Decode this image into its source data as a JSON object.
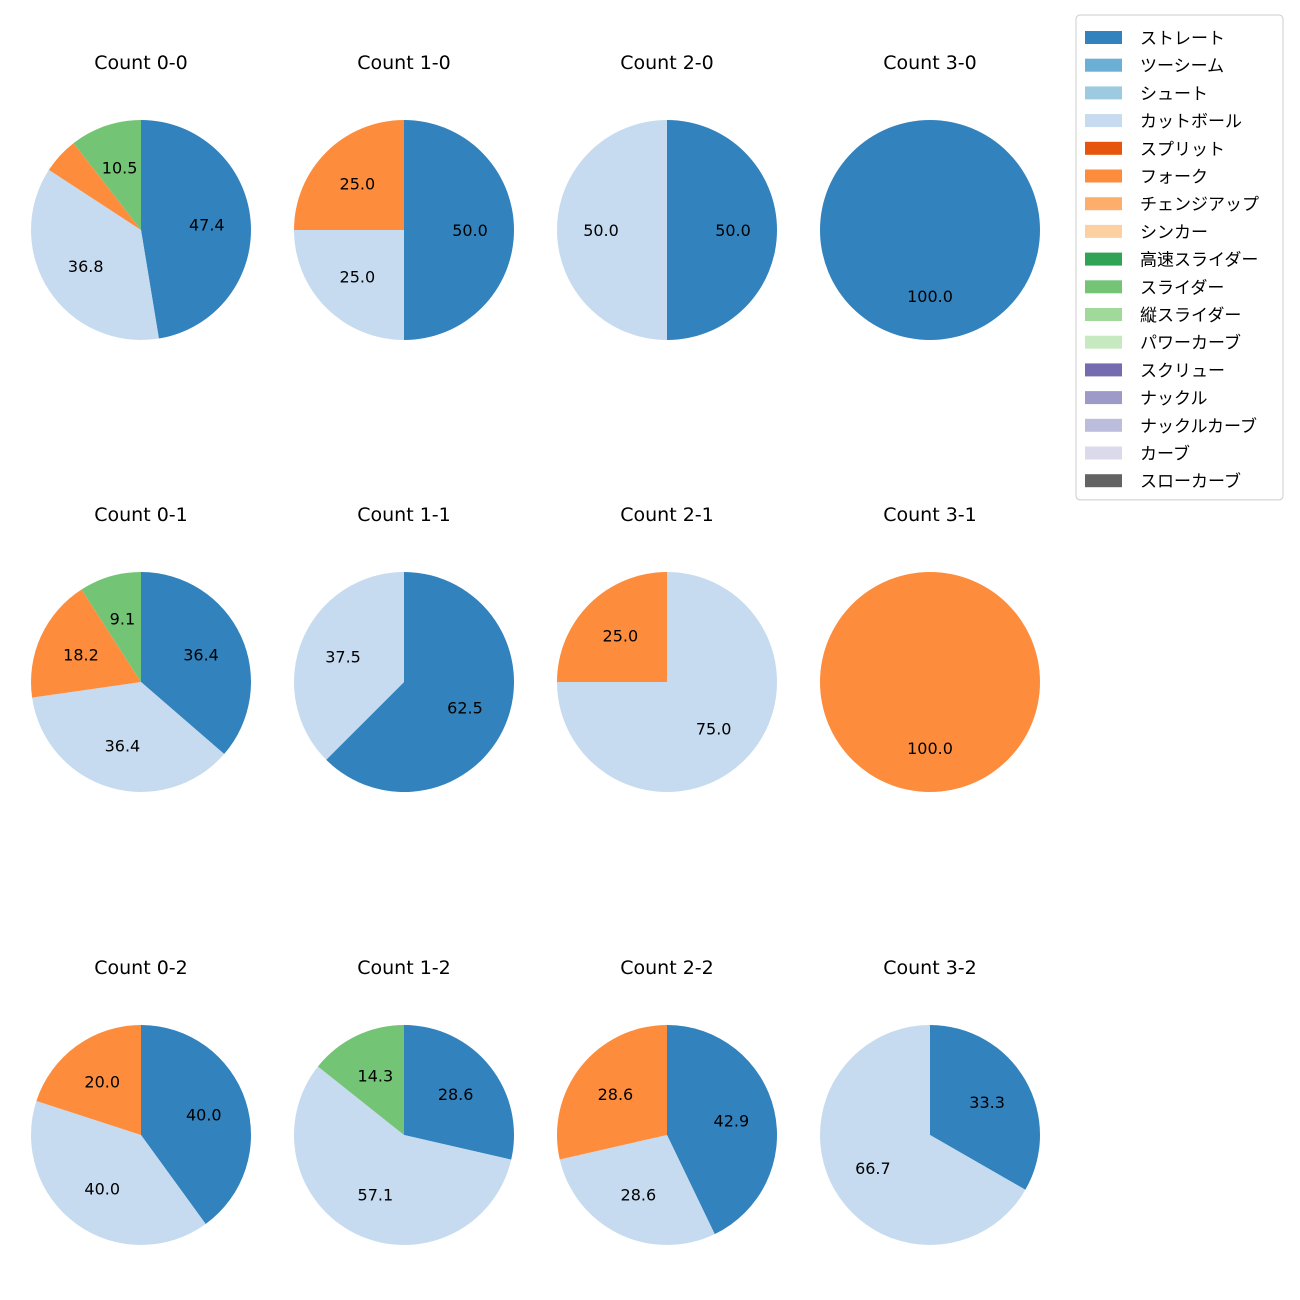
{
  "chart_data": {
    "type": "pie",
    "legend": {
      "placement": "top-right",
      "entries": [
        {
          "label": "ストレート",
          "color": "#3182bd"
        },
        {
          "label": "ツーシーム",
          "color": "#6baed6"
        },
        {
          "label": "シュート",
          "color": "#9ecae1"
        },
        {
          "label": "カットボール",
          "color": "#c6dbef"
        },
        {
          "label": "スプリット",
          "color": "#e6550d"
        },
        {
          "label": "フォーク",
          "color": "#fd8d3c"
        },
        {
          "label": "チェンジアップ",
          "color": "#fdae6b"
        },
        {
          "label": "シンカー",
          "color": "#fdd0a2"
        },
        {
          "label": "高速スライダー",
          "color": "#31a354"
        },
        {
          "label": "スライダー",
          "color": "#74c476"
        },
        {
          "label": "縦スライダー",
          "color": "#a1d99b"
        },
        {
          "label": "パワーカーブ",
          "color": "#c7e9c0"
        },
        {
          "label": "スクリュー",
          "color": "#756bb1"
        },
        {
          "label": "ナックル",
          "color": "#9e9ac8"
        },
        {
          "label": "ナックルカーブ",
          "color": "#bcbddc"
        },
        {
          "label": "カーブ",
          "color": "#dadaeb"
        },
        {
          "label": "スローカーブ",
          "color": "#636363"
        }
      ]
    },
    "pies": [
      {
        "title": "Count 0-0",
        "slices": [
          {
            "pitch": "ストレート",
            "value": 47.4,
            "label": "47.4"
          },
          {
            "pitch": "カットボール",
            "value": 36.8,
            "label": "36.8"
          },
          {
            "pitch": "フォーク",
            "value": 5.3,
            "label": ""
          },
          {
            "pitch": "スライダー",
            "value": 10.5,
            "label": "10.5"
          }
        ]
      },
      {
        "title": "Count 1-0",
        "slices": [
          {
            "pitch": "ストレート",
            "value": 50.0,
            "label": "50.0"
          },
          {
            "pitch": "カットボール",
            "value": 25.0,
            "label": "25.0"
          },
          {
            "pitch": "フォーク",
            "value": 25.0,
            "label": "25.0"
          }
        ]
      },
      {
        "title": "Count 2-0",
        "slices": [
          {
            "pitch": "ストレート",
            "value": 50.0,
            "label": "50.0"
          },
          {
            "pitch": "カットボール",
            "value": 50.0,
            "label": "50.0"
          }
        ]
      },
      {
        "title": "Count 3-0",
        "slices": [
          {
            "pitch": "ストレート",
            "value": 100.0,
            "label": "100.0"
          }
        ]
      },
      {
        "title": "Count 0-1",
        "slices": [
          {
            "pitch": "ストレート",
            "value": 36.4,
            "label": "36.4"
          },
          {
            "pitch": "カットボール",
            "value": 36.4,
            "label": "36.4"
          },
          {
            "pitch": "フォーク",
            "value": 18.2,
            "label": "18.2"
          },
          {
            "pitch": "スライダー",
            "value": 9.1,
            "label": "9.1"
          }
        ]
      },
      {
        "title": "Count 1-1",
        "slices": [
          {
            "pitch": "ストレート",
            "value": 62.5,
            "label": "62.5"
          },
          {
            "pitch": "カットボール",
            "value": 37.5,
            "label": "37.5"
          }
        ]
      },
      {
        "title": "Count 2-1",
        "slices": [
          {
            "pitch": "カットボール",
            "value": 75.0,
            "label": "75.0"
          },
          {
            "pitch": "フォーク",
            "value": 25.0,
            "label": "25.0"
          }
        ]
      },
      {
        "title": "Count 3-1",
        "slices": [
          {
            "pitch": "フォーク",
            "value": 100.0,
            "label": "100.0"
          }
        ]
      },
      {
        "title": "Count 0-2",
        "slices": [
          {
            "pitch": "ストレート",
            "value": 40.0,
            "label": "40.0"
          },
          {
            "pitch": "カットボール",
            "value": 40.0,
            "label": "40.0"
          },
          {
            "pitch": "フォーク",
            "value": 20.0,
            "label": "20.0"
          }
        ]
      },
      {
        "title": "Count 1-2",
        "slices": [
          {
            "pitch": "ストレート",
            "value": 28.6,
            "label": "28.6"
          },
          {
            "pitch": "カットボール",
            "value": 57.1,
            "label": "57.1"
          },
          {
            "pitch": "スライダー",
            "value": 14.3,
            "label": "14.3"
          }
        ]
      },
      {
        "title": "Count 2-2",
        "slices": [
          {
            "pitch": "ストレート",
            "value": 42.9,
            "label": "42.9"
          },
          {
            "pitch": "カットボール",
            "value": 28.6,
            "label": "28.6"
          },
          {
            "pitch": "フォーク",
            "value": 28.6,
            "label": "28.6"
          }
        ]
      },
      {
        "title": "Count 3-2",
        "slices": [
          {
            "pitch": "ストレート",
            "value": 33.3,
            "label": "33.3"
          },
          {
            "pitch": "カットボール",
            "value": 66.7,
            "label": "66.7"
          }
        ]
      }
    ]
  }
}
